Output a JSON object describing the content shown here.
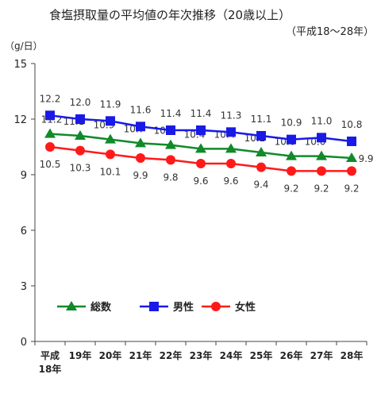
{
  "chart_data": {
    "type": "line",
    "title": "食塩摂取量の平均値の年次推移（20歳以上）",
    "subtitle": "（平成18～28年）",
    "unit_label": "（g/日）",
    "categories": [
      "平成18年",
      "19年",
      "20年",
      "21年",
      "22年",
      "23年",
      "24年",
      "25年",
      "26年",
      "27年",
      "28年"
    ],
    "category_lines": [
      [
        "平成",
        "18年"
      ],
      [
        "19年"
      ],
      [
        "20年"
      ],
      [
        "21年"
      ],
      [
        "22年"
      ],
      [
        "23年"
      ],
      [
        "24年"
      ],
      [
        "25年"
      ],
      [
        "26年"
      ],
      [
        "27年"
      ],
      [
        "28年"
      ]
    ],
    "ylim": [
      0,
      15
    ],
    "yticks": [
      0,
      3,
      6,
      9,
      12,
      15
    ],
    "grid": false,
    "legend_position": "bottom-center",
    "series": [
      {
        "name": "総数",
        "color": "#118a2a",
        "marker": "triangle",
        "values": [
          11.2,
          11.1,
          10.9,
          10.7,
          10.6,
          10.4,
          10.4,
          10.2,
          10.0,
          10.0,
          9.9
        ],
        "labels": [
          "11.2",
          "11.1",
          "10.9",
          "10.7",
          "10.6",
          "10.4",
          "10.4",
          "10.2",
          "10.0",
          "10.0",
          "9.9"
        ]
      },
      {
        "name": "男性",
        "color": "#1a1ae6",
        "marker": "square",
        "values": [
          12.2,
          12.0,
          11.9,
          11.6,
          11.4,
          11.4,
          11.3,
          11.1,
          10.9,
          11.0,
          10.8
        ],
        "labels": [
          "12.2",
          "12.0",
          "11.9",
          "11.6",
          "11.4",
          "11.4",
          "11.3",
          "11.1",
          "10.9",
          "11.0",
          "10.8"
        ]
      },
      {
        "name": "女性",
        "color": "#ff1a1a",
        "marker": "circle",
        "values": [
          10.5,
          10.3,
          10.1,
          9.9,
          9.8,
          9.6,
          9.6,
          9.4,
          9.2,
          9.2,
          9.2
        ],
        "labels": [
          "10.5",
          "10.3",
          "10.1",
          "9.9",
          "9.8",
          "9.6",
          "9.6",
          "9.4",
          "9.2",
          "9.2",
          "9.2"
        ]
      }
    ]
  }
}
